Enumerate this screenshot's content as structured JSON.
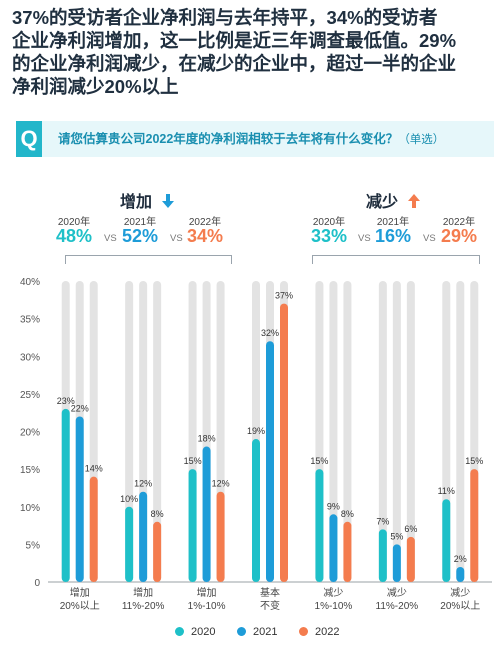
{
  "headline": [
    "37%的受访者企业净利润与去年持平，34%的受访者",
    "企业净利润增加，这一比例是近三年调查最低值。29%",
    "的企业净利润减少，在减少的企业中，超过一半的企业",
    "净利润减少20%以上"
  ],
  "question": {
    "badge": "Q",
    "text": "请您估算贵公司2022年度的净利润相较于去年将有什么变化？",
    "hint": "（单选）"
  },
  "summary": {
    "increase": {
      "title": "增加",
      "arrow_icon": "arrow-down-icon",
      "years": [
        "2020年",
        "2021年",
        "2022年"
      ],
      "values": [
        "48%",
        "52%",
        "34%"
      ],
      "vs": "VS"
    },
    "decrease": {
      "title": "减少",
      "arrow_icon": "arrow-up-icon",
      "years": [
        "2020年",
        "2021年",
        "2022年"
      ],
      "values": [
        "33%",
        "16%",
        "29%"
      ],
      "vs": "VS"
    }
  },
  "colors": {
    "2020": "#1ec0c8",
    "2021": "#1e9cd8",
    "2022": "#f47c4e",
    "track": "#e3e3e3",
    "accent_blue": "#1e9cd8",
    "accent_orange": "#f47c4e"
  },
  "chart_data": {
    "type": "bar",
    "categories": [
      [
        "增加",
        "20%以上"
      ],
      [
        "增加",
        "11%-20%"
      ],
      [
        "增加",
        "1%-10%"
      ],
      [
        "基本",
        "不变"
      ],
      [
        "减少",
        "1%-10%"
      ],
      [
        "减少",
        "11%-20%"
      ],
      [
        "减少",
        "20%以上"
      ]
    ],
    "series": [
      {
        "name": "2020",
        "values": [
          23,
          10,
          15,
          19,
          15,
          7,
          11
        ]
      },
      {
        "name": "2021",
        "values": [
          22,
          12,
          18,
          32,
          9,
          5,
          2
        ]
      },
      {
        "name": "2022",
        "values": [
          14,
          8,
          12,
          37,
          8,
          6,
          15
        ]
      }
    ],
    "ylim": [
      0,
      40
    ],
    "yticks": [
      "0",
      "5%",
      "10%",
      "15%",
      "20%",
      "25%",
      "30%",
      "35%",
      "40%"
    ],
    "value_suffix": "%",
    "grid": false,
    "legend_position": "bottom-center"
  }
}
